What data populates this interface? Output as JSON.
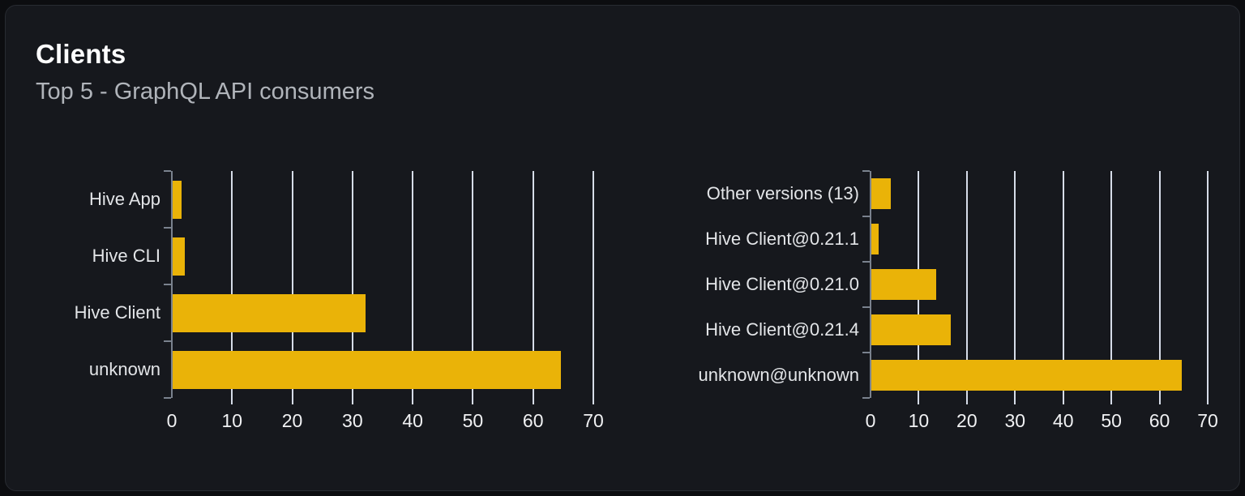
{
  "panel": {
    "title": "Clients",
    "subtitle": "Top 5 - GraphQL API consumers"
  },
  "colors": {
    "page_bg": "#0c0d10",
    "card_bg": "#16181d",
    "card_border": "#282b31",
    "bar": "#eab308",
    "gridline": "#d6dce8",
    "axis": "#7a828e",
    "label": "#e3e5e8",
    "tick_label": "#f0f1f3",
    "title": "#fdfdfe",
    "subtitle": "#b0b4ba"
  },
  "chart_data": [
    {
      "type": "bar",
      "orientation": "horizontal",
      "name": "client-usage",
      "categories": [
        "Hive App",
        "Hive CLI",
        "Hive Client",
        "unknown"
      ],
      "values": [
        1.5,
        2,
        32,
        64.5
      ],
      "xlim": [
        0,
        70
      ],
      "xticks": [
        0,
        10,
        20,
        30,
        40,
        50,
        60,
        70
      ],
      "grid": true,
      "legend": "none",
      "bar_color": "#eab308"
    },
    {
      "type": "bar",
      "orientation": "horizontal",
      "name": "client-versions",
      "categories": [
        "Other versions (13)",
        "Hive Client@0.21.1",
        "Hive Client@0.21.0",
        "Hive Client@0.21.4",
        "unknown@unknown"
      ],
      "values": [
        4,
        1.5,
        13.5,
        16.5,
        64.5
      ],
      "xlim": [
        0,
        70
      ],
      "xticks": [
        0,
        10,
        20,
        30,
        40,
        50,
        60,
        70
      ],
      "grid": true,
      "legend": "none",
      "bar_color": "#eab308"
    }
  ]
}
